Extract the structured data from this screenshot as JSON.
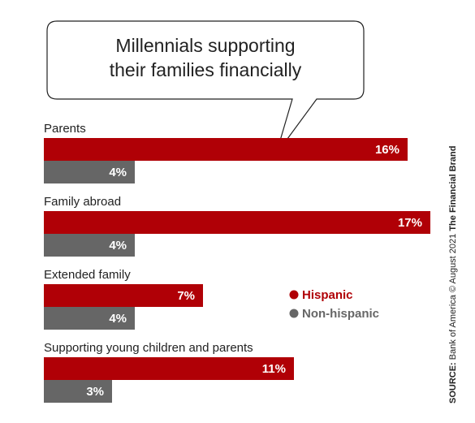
{
  "colors": {
    "hispanic": "#b00006",
    "non_hispanic": "#666666"
  },
  "chart_data": {
    "type": "bar",
    "orientation": "horizontal",
    "title": "Millennials supporting their families financially",
    "title_lines": [
      "Millennials supporting",
      "their families financially"
    ],
    "categories": [
      "Parents",
      "Family abroad",
      "Extended family",
      "Supporting young children and parents"
    ],
    "series": [
      {
        "name": "Hispanic",
        "values": [
          16,
          17,
          7,
          11
        ],
        "labels": [
          "16%",
          "17%",
          "7%",
          "11%"
        ]
      },
      {
        "name": "Non-hispanic",
        "values": [
          4,
          4,
          4,
          3
        ],
        "labels": [
          "4%",
          "4%",
          "4%",
          "3%"
        ]
      }
    ],
    "value_unit": "%",
    "xlim": [
      0,
      17
    ],
    "grid": false,
    "legend_position": "right"
  },
  "source": {
    "prefix": "SOURCE:",
    "text": " Bank of America © August 2021 ",
    "brand": "The Financial Brand"
  }
}
